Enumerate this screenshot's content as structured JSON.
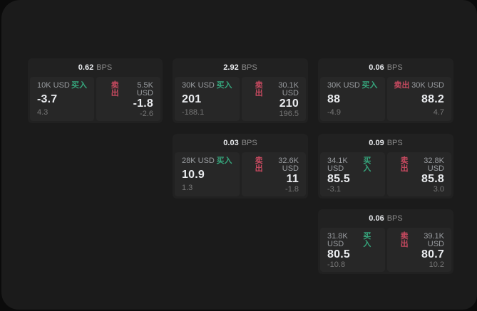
{
  "labels": {
    "bps_unit": "BPS",
    "buy": "买入",
    "sell": "卖出"
  },
  "colors": {
    "buy": "#36a57c",
    "sell": "#c84a60",
    "panel": "#1b1b1b",
    "card": "#212121",
    "tile": "#272727"
  },
  "cards": [
    {
      "row": 1,
      "col": 1,
      "bps": "0.62",
      "bps_unit": "BPS",
      "buy": {
        "notional": "10K USD",
        "side_label": "买入",
        "price": "-3.7",
        "delta": "4.3"
      },
      "sell": {
        "side_label": "卖出",
        "notional": "5.5K USD",
        "price": "-1.8",
        "delta": "-2.6"
      }
    },
    {
      "row": 1,
      "col": 2,
      "bps": "2.92",
      "bps_unit": "BPS",
      "buy": {
        "notional": "30K USD",
        "side_label": "买入",
        "price": "201",
        "delta": "-188.1"
      },
      "sell": {
        "side_label": "卖出",
        "notional": "30.1K USD",
        "price": "210",
        "delta": "196.5"
      }
    },
    {
      "row": 1,
      "col": 3,
      "bps": "0.06",
      "bps_unit": "BPS",
      "buy": {
        "notional": "30K USD",
        "side_label": "买入",
        "price": "88",
        "delta": "-4.9"
      },
      "sell": {
        "side_label": "卖出",
        "notional": "30K USD",
        "price": "88.2",
        "delta": "4.7"
      }
    },
    {
      "row": 2,
      "col": 2,
      "bps": "0.03",
      "bps_unit": "BPS",
      "buy": {
        "notional": "28K USD",
        "side_label": "买入",
        "price": "10.9",
        "delta": "1.3"
      },
      "sell": {
        "side_label": "卖出",
        "notional": "32.6K USD",
        "price": "11",
        "delta": "-1.8"
      }
    },
    {
      "row": 2,
      "col": 3,
      "bps": "0.09",
      "bps_unit": "BPS",
      "buy": {
        "notional": "34.1K USD",
        "side_label": "买入",
        "price": "85.5",
        "delta": "-3.1"
      },
      "sell": {
        "side_label": "卖出",
        "notional": "32.8K USD",
        "price": "85.8",
        "delta": "3.0"
      }
    },
    {
      "row": 3,
      "col": 3,
      "bps": "0.06",
      "bps_unit": "BPS",
      "buy": {
        "notional": "31.8K USD",
        "side_label": "买入",
        "price": "80.5",
        "delta": "-10.8"
      },
      "sell": {
        "side_label": "卖出",
        "notional": "39.1K USD",
        "price": "80.7",
        "delta": "10.2"
      }
    }
  ]
}
